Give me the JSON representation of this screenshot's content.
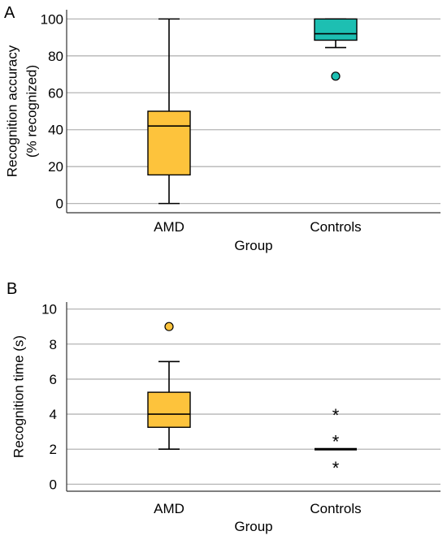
{
  "chart_data": [
    {
      "panel": "A",
      "type": "box",
      "xlabel": "Group",
      "ylabel_lines": [
        "Recognition accuracy",
        "(% recognized)"
      ],
      "ylim": [
        -5,
        105
      ],
      "yticks": [
        0,
        20,
        40,
        60,
        80,
        100
      ],
      "grid": true,
      "categories": [
        "AMD",
        "Controls"
      ],
      "boxes": [
        {
          "name": "AMD",
          "color": "#fdc33c",
          "whisker_low": 0,
          "q1": 15.5,
          "median": 42,
          "q3": 50,
          "whisker_high": 100,
          "outliers": [],
          "extremes": []
        },
        {
          "name": "Controls",
          "color": "#1dbfb2",
          "whisker_low": 84.5,
          "q1": 88.5,
          "median": 92,
          "q3": 100,
          "whisker_high": 100,
          "outliers": [
            69
          ],
          "extremes": []
        }
      ]
    },
    {
      "panel": "B",
      "type": "box",
      "xlabel": "Group",
      "ylabel_lines": [
        "Recognition time (s)"
      ],
      "ylim": [
        -0.4,
        10.4
      ],
      "yticks": [
        0,
        2,
        4,
        6,
        8,
        10
      ],
      "grid": true,
      "categories": [
        "AMD",
        "Controls"
      ],
      "boxes": [
        {
          "name": "AMD",
          "color": "#fdc33c",
          "whisker_low": 2,
          "q1": 3.25,
          "median": 4,
          "q3": 5.25,
          "whisker_high": 7,
          "outliers": [
            9
          ],
          "extremes": []
        },
        {
          "name": "Controls",
          "color": "#1dbfb2",
          "whisker_low": 2,
          "q1": 2,
          "median": 2,
          "q3": 2,
          "whisker_high": 2,
          "outliers": [],
          "extremes": [
            4,
            2.5,
            1
          ]
        }
      ]
    }
  ]
}
